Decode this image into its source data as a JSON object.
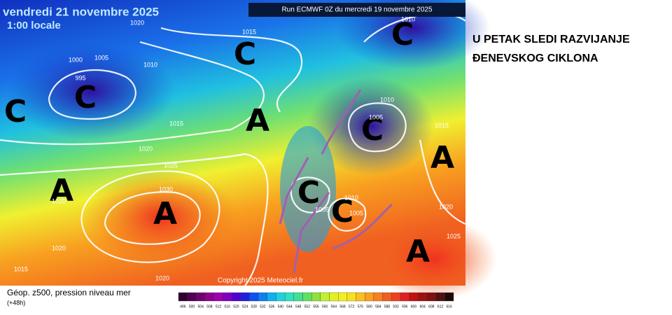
{
  "map": {
    "date": "vendredi 21 novembre 2025",
    "time": "1:00 locale",
    "run": "Run ECMWF 0Z du mercredi 19 novembre 2025",
    "copyright": "Copyright 2025 Meteociel.fr",
    "systems": [
      "C",
      "C",
      "C",
      "C",
      "C",
      "A",
      "A",
      "A",
      "A",
      "C",
      "C",
      "A"
    ],
    "pressure_labels": [
      "1020",
      "1015",
      "1010",
      "1000",
      "1005",
      "995",
      "1015",
      "1020",
      "1025",
      "1030",
      "1020",
      "1020",
      "1015",
      "1020",
      "1010",
      "1005",
      "1015",
      "1020",
      "1025",
      "1010",
      "1005",
      "1005",
      "1010"
    ]
  },
  "legend": {
    "title": "Géop. z500, pression niveau mer",
    "subtitle": "(+48h)",
    "scale": [
      "496",
      "500",
      "504",
      "508",
      "512",
      "516",
      "520",
      "524",
      "528",
      "532",
      "536",
      "540",
      "544",
      "548",
      "552",
      "556",
      "560",
      "564",
      "568",
      "572",
      "576",
      "580",
      "584",
      "588",
      "592",
      "596",
      "600",
      "604",
      "608",
      "612",
      "616"
    ]
  },
  "caption": [
    "U PETAK SLEDI RAZVIJANJE",
    "ĐENEVSKOG CIKLONA"
  ]
}
